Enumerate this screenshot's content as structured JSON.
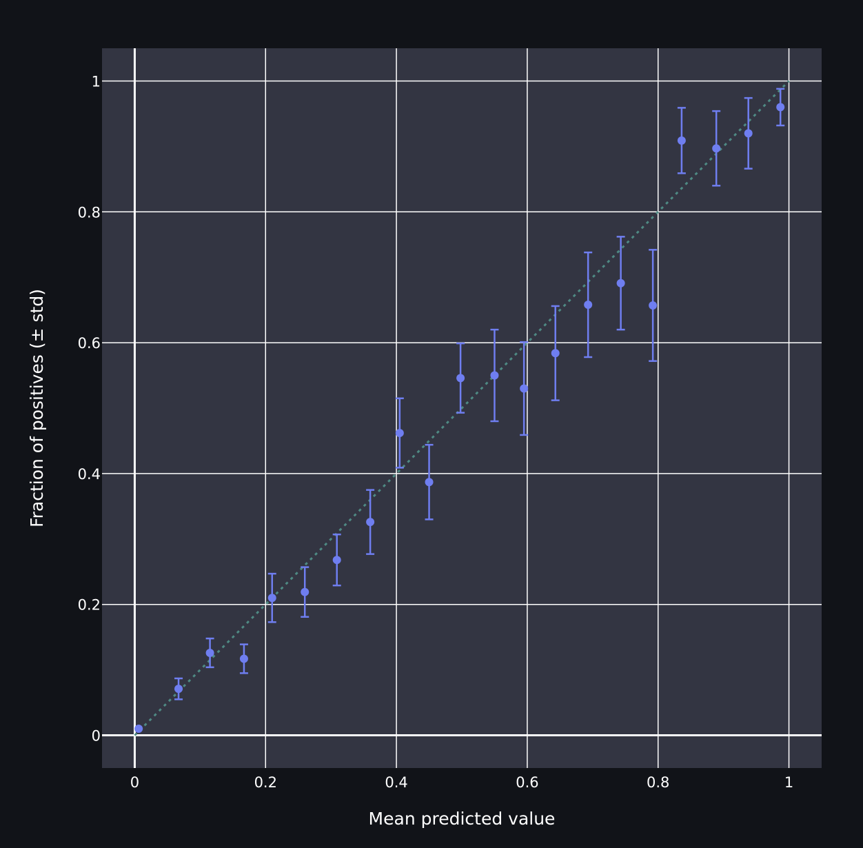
{
  "colors": {
    "page_bg": "#111318",
    "plot_bg": "#333542",
    "grid": "#ffffff",
    "marker": "#6f7ef0",
    "diagonal": "#4f8a84",
    "text": "#ffffff"
  },
  "chart_data": {
    "type": "scatter",
    "title": "",
    "xlabel": "Mean predicted value",
    "ylabel": "Fraction of positives (± std)",
    "xlim": [
      -0.05,
      1.05
    ],
    "ylim": [
      -0.05,
      1.05
    ],
    "grid": true,
    "xticks": [
      0,
      0.2,
      0.4,
      0.6,
      0.8,
      1
    ],
    "xtick_labels": [
      "0",
      "0.2",
      "0.4",
      "0.6",
      "0.8",
      "1"
    ],
    "yticks": [
      0,
      0.2,
      0.4,
      0.6,
      0.8,
      1
    ],
    "ytick_labels": [
      "0",
      "0.2",
      "0.4",
      "0.6",
      "0.8",
      "1"
    ],
    "reference_line": {
      "x": [
        0,
        1
      ],
      "y": [
        0,
        1
      ],
      "style": "dotted"
    },
    "series": [
      {
        "error_bars": "std",
        "points": [
          {
            "x": 0.006,
            "y": 0.01,
            "err_minus": 0.0,
            "err_plus": 0.0
          },
          {
            "x": 0.067,
            "y": 0.071,
            "err_minus": 0.016,
            "err_plus": 0.016
          },
          {
            "x": 0.115,
            "y": 0.126,
            "err_minus": 0.022,
            "err_plus": 0.022
          },
          {
            "x": 0.167,
            "y": 0.117,
            "err_minus": 0.022,
            "err_plus": 0.022
          },
          {
            "x": 0.21,
            "y": 0.21,
            "err_minus": 0.037,
            "err_plus": 0.037
          },
          {
            "x": 0.26,
            "y": 0.219,
            "err_minus": 0.038,
            "err_plus": 0.038
          },
          {
            "x": 0.309,
            "y": 0.268,
            "err_minus": 0.039,
            "err_plus": 0.039
          },
          {
            "x": 0.36,
            "y": 0.326,
            "err_minus": 0.049,
            "err_plus": 0.049
          },
          {
            "x": 0.405,
            "y": 0.462,
            "err_minus": 0.053,
            "err_plus": 0.053
          },
          {
            "x": 0.45,
            "y": 0.387,
            "err_minus": 0.057,
            "err_plus": 0.057
          },
          {
            "x": 0.498,
            "y": 0.546,
            "err_minus": 0.053,
            "err_plus": 0.053
          },
          {
            "x": 0.55,
            "y": 0.55,
            "err_minus": 0.07,
            "err_plus": 0.07
          },
          {
            "x": 0.595,
            "y": 0.53,
            "err_minus": 0.071,
            "err_plus": 0.071
          },
          {
            "x": 0.643,
            "y": 0.584,
            "err_minus": 0.072,
            "err_plus": 0.072
          },
          {
            "x": 0.693,
            "y": 0.658,
            "err_minus": 0.08,
            "err_plus": 0.08
          },
          {
            "x": 0.743,
            "y": 0.691,
            "err_minus": 0.071,
            "err_plus": 0.071
          },
          {
            "x": 0.792,
            "y": 0.657,
            "err_minus": 0.085,
            "err_plus": 0.085
          },
          {
            "x": 0.836,
            "y": 0.909,
            "err_minus": 0.05,
            "err_plus": 0.05
          },
          {
            "x": 0.889,
            "y": 0.897,
            "err_minus": 0.057,
            "err_plus": 0.057
          },
          {
            "x": 0.938,
            "y": 0.92,
            "err_minus": 0.054,
            "err_plus": 0.054
          },
          {
            "x": 0.987,
            "y": 0.96,
            "err_minus": 0.028,
            "err_plus": 0.028
          }
        ]
      }
    ]
  }
}
